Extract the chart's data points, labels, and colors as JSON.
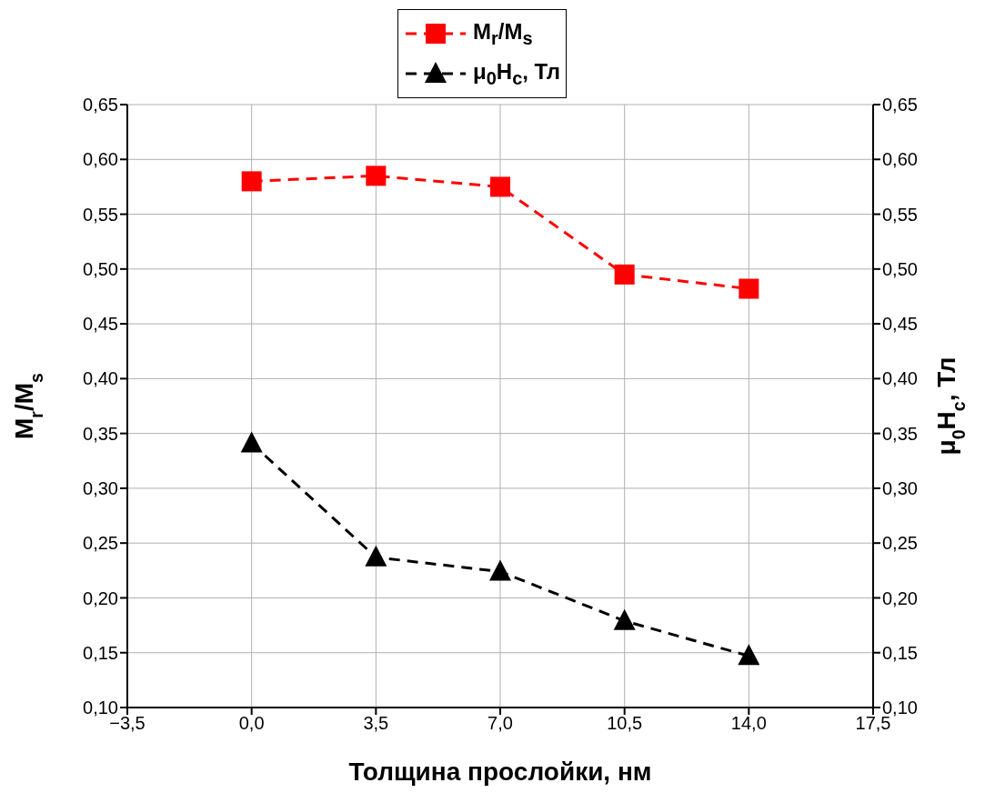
{
  "chart_data": {
    "type": "line",
    "xlabel": "Толщина прослойки, нм",
    "ylabel": "M$_{r}$/M$_{s}$",
    "y2label": "μ$_{0}$H$_{c}$, Тл",
    "x": [
      0,
      3.5,
      7,
      10.5,
      14
    ],
    "series": [
      {
        "name": "M$_{r}$/M$_{s}$",
        "color": "#ff0000",
        "values": [
          0.58,
          0.585,
          0.575,
          0.495,
          0.482
        ],
        "marker": "square"
      },
      {
        "name": "μ$_{0}$H$_{c}$, Тл",
        "color": "#000000",
        "values": [
          0.341,
          0.237,
          0.224,
          0.179,
          0.147
        ],
        "marker": "triangle",
        "axis": "y2"
      }
    ],
    "line_style": "dashed",
    "grid": true,
    "legend": "top",
    "xlim": [
      -3.5,
      17.5
    ],
    "xticks": [
      {
        "value": -3.5,
        "label": "−3,5"
      },
      {
        "value": 0,
        "label": "0,0"
      },
      {
        "value": 3.5,
        "label": "3,5"
      },
      {
        "value": 7,
        "label": "7,0"
      },
      {
        "value": 10.5,
        "label": "10,5"
      },
      {
        "value": 14,
        "label": "14,0"
      },
      {
        "value": 17.5,
        "label": "17,5"
      }
    ],
    "ylim": [
      0.1,
      0.65
    ],
    "yticks": [
      {
        "value": 0.1,
        "label": "0,10"
      },
      {
        "value": 0.15,
        "label": "0,15"
      },
      {
        "value": 0.2,
        "label": "0,20"
      },
      {
        "value": 0.25,
        "label": "0,25"
      },
      {
        "value": 0.3,
        "label": "0,30"
      },
      {
        "value": 0.35,
        "label": "0,35"
      },
      {
        "value": 0.4,
        "label": "0,40"
      },
      {
        "value": 0.45,
        "label": "0,45"
      },
      {
        "value": 0.5,
        "label": "0,50"
      },
      {
        "value": 0.55,
        "label": "0,55"
      },
      {
        "value": 0.6,
        "label": "0,60"
      },
      {
        "value": 0.65,
        "label": "0,65"
      }
    ],
    "y2lim": [
      0.1,
      0.65
    ],
    "y2ticks": [
      {
        "value": 0.1,
        "label": "0,10"
      },
      {
        "value": 0.15,
        "label": "0,15"
      },
      {
        "value": 0.2,
        "label": "0,20"
      },
      {
        "value": 0.25,
        "label": "0,25"
      },
      {
        "value": 0.3,
        "label": "0,30"
      },
      {
        "value": 0.35,
        "label": "0,35"
      },
      {
        "value": 0.4,
        "label": "0,40"
      },
      {
        "value": 0.45,
        "label": "0,45"
      },
      {
        "value": 0.5,
        "label": "0,50"
      },
      {
        "value": 0.55,
        "label": "0,55"
      },
      {
        "value": 0.6,
        "label": "0,60"
      },
      {
        "value": 0.65,
        "label": "0,65"
      }
    ]
  }
}
